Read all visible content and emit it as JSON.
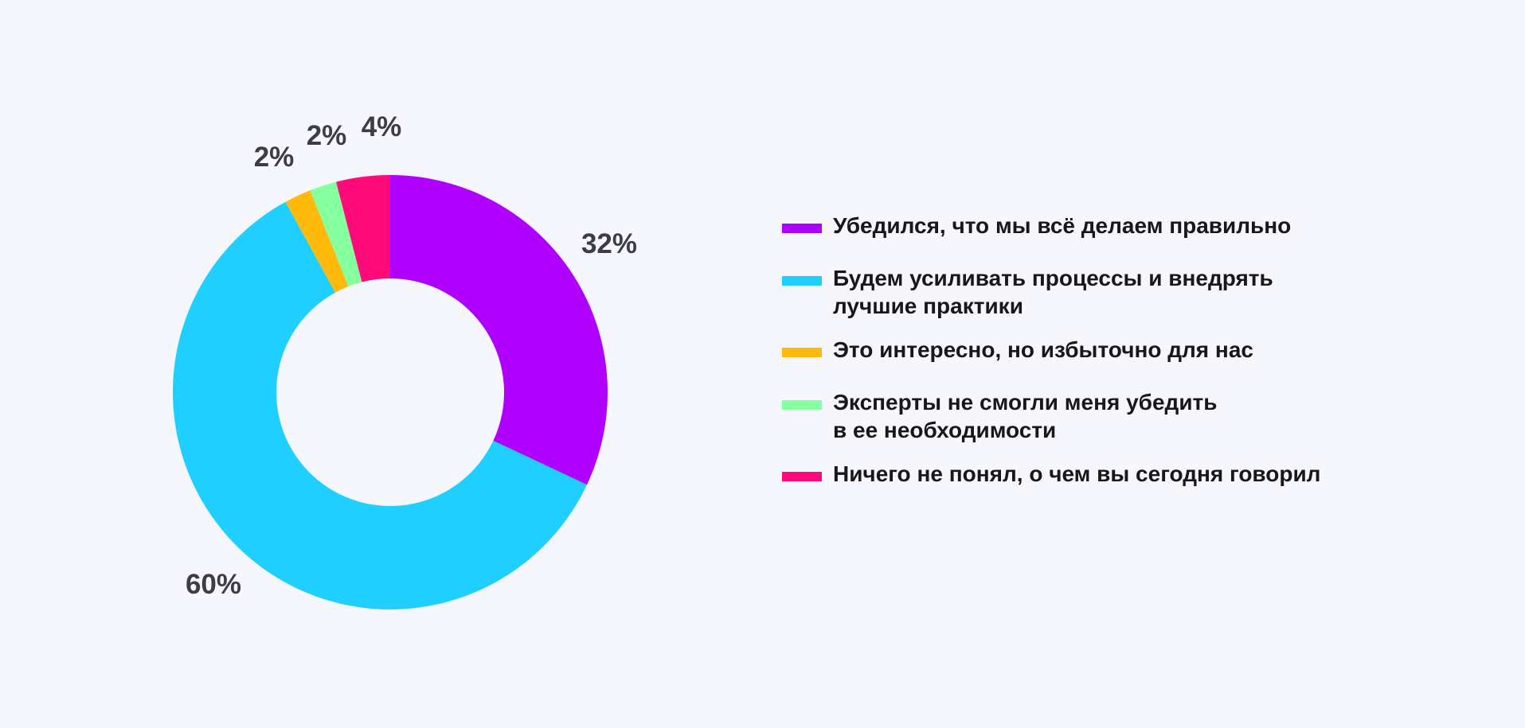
{
  "chart_data": {
    "type": "pie",
    "subtype": "donut",
    "value_unit": "%",
    "slices": [
      {
        "label": "Убедился, что мы всё делаем правильно",
        "value": 32,
        "value_label": "32%",
        "color": "#b000ff"
      },
      {
        "label": "Будем усиливать процессы и внедрять\nлучшие практики",
        "value": 60,
        "value_label": "60%",
        "color": "#1fcfff"
      },
      {
        "label": "Это интересно, но избыточно для нас",
        "value": 2,
        "value_label": "2%",
        "color": "#ffba0c"
      },
      {
        "label": "Эксперты не смогли меня убедить\nв ее необходимости",
        "value": 2,
        "value_label": "2%",
        "color": "#86ff9e"
      },
      {
        "label": "Ничего не понял, о чем вы сегодня говорил",
        "value": 4,
        "value_label": "4%",
        "color": "#ff0a78"
      }
    ],
    "legend_position": "right"
  }
}
